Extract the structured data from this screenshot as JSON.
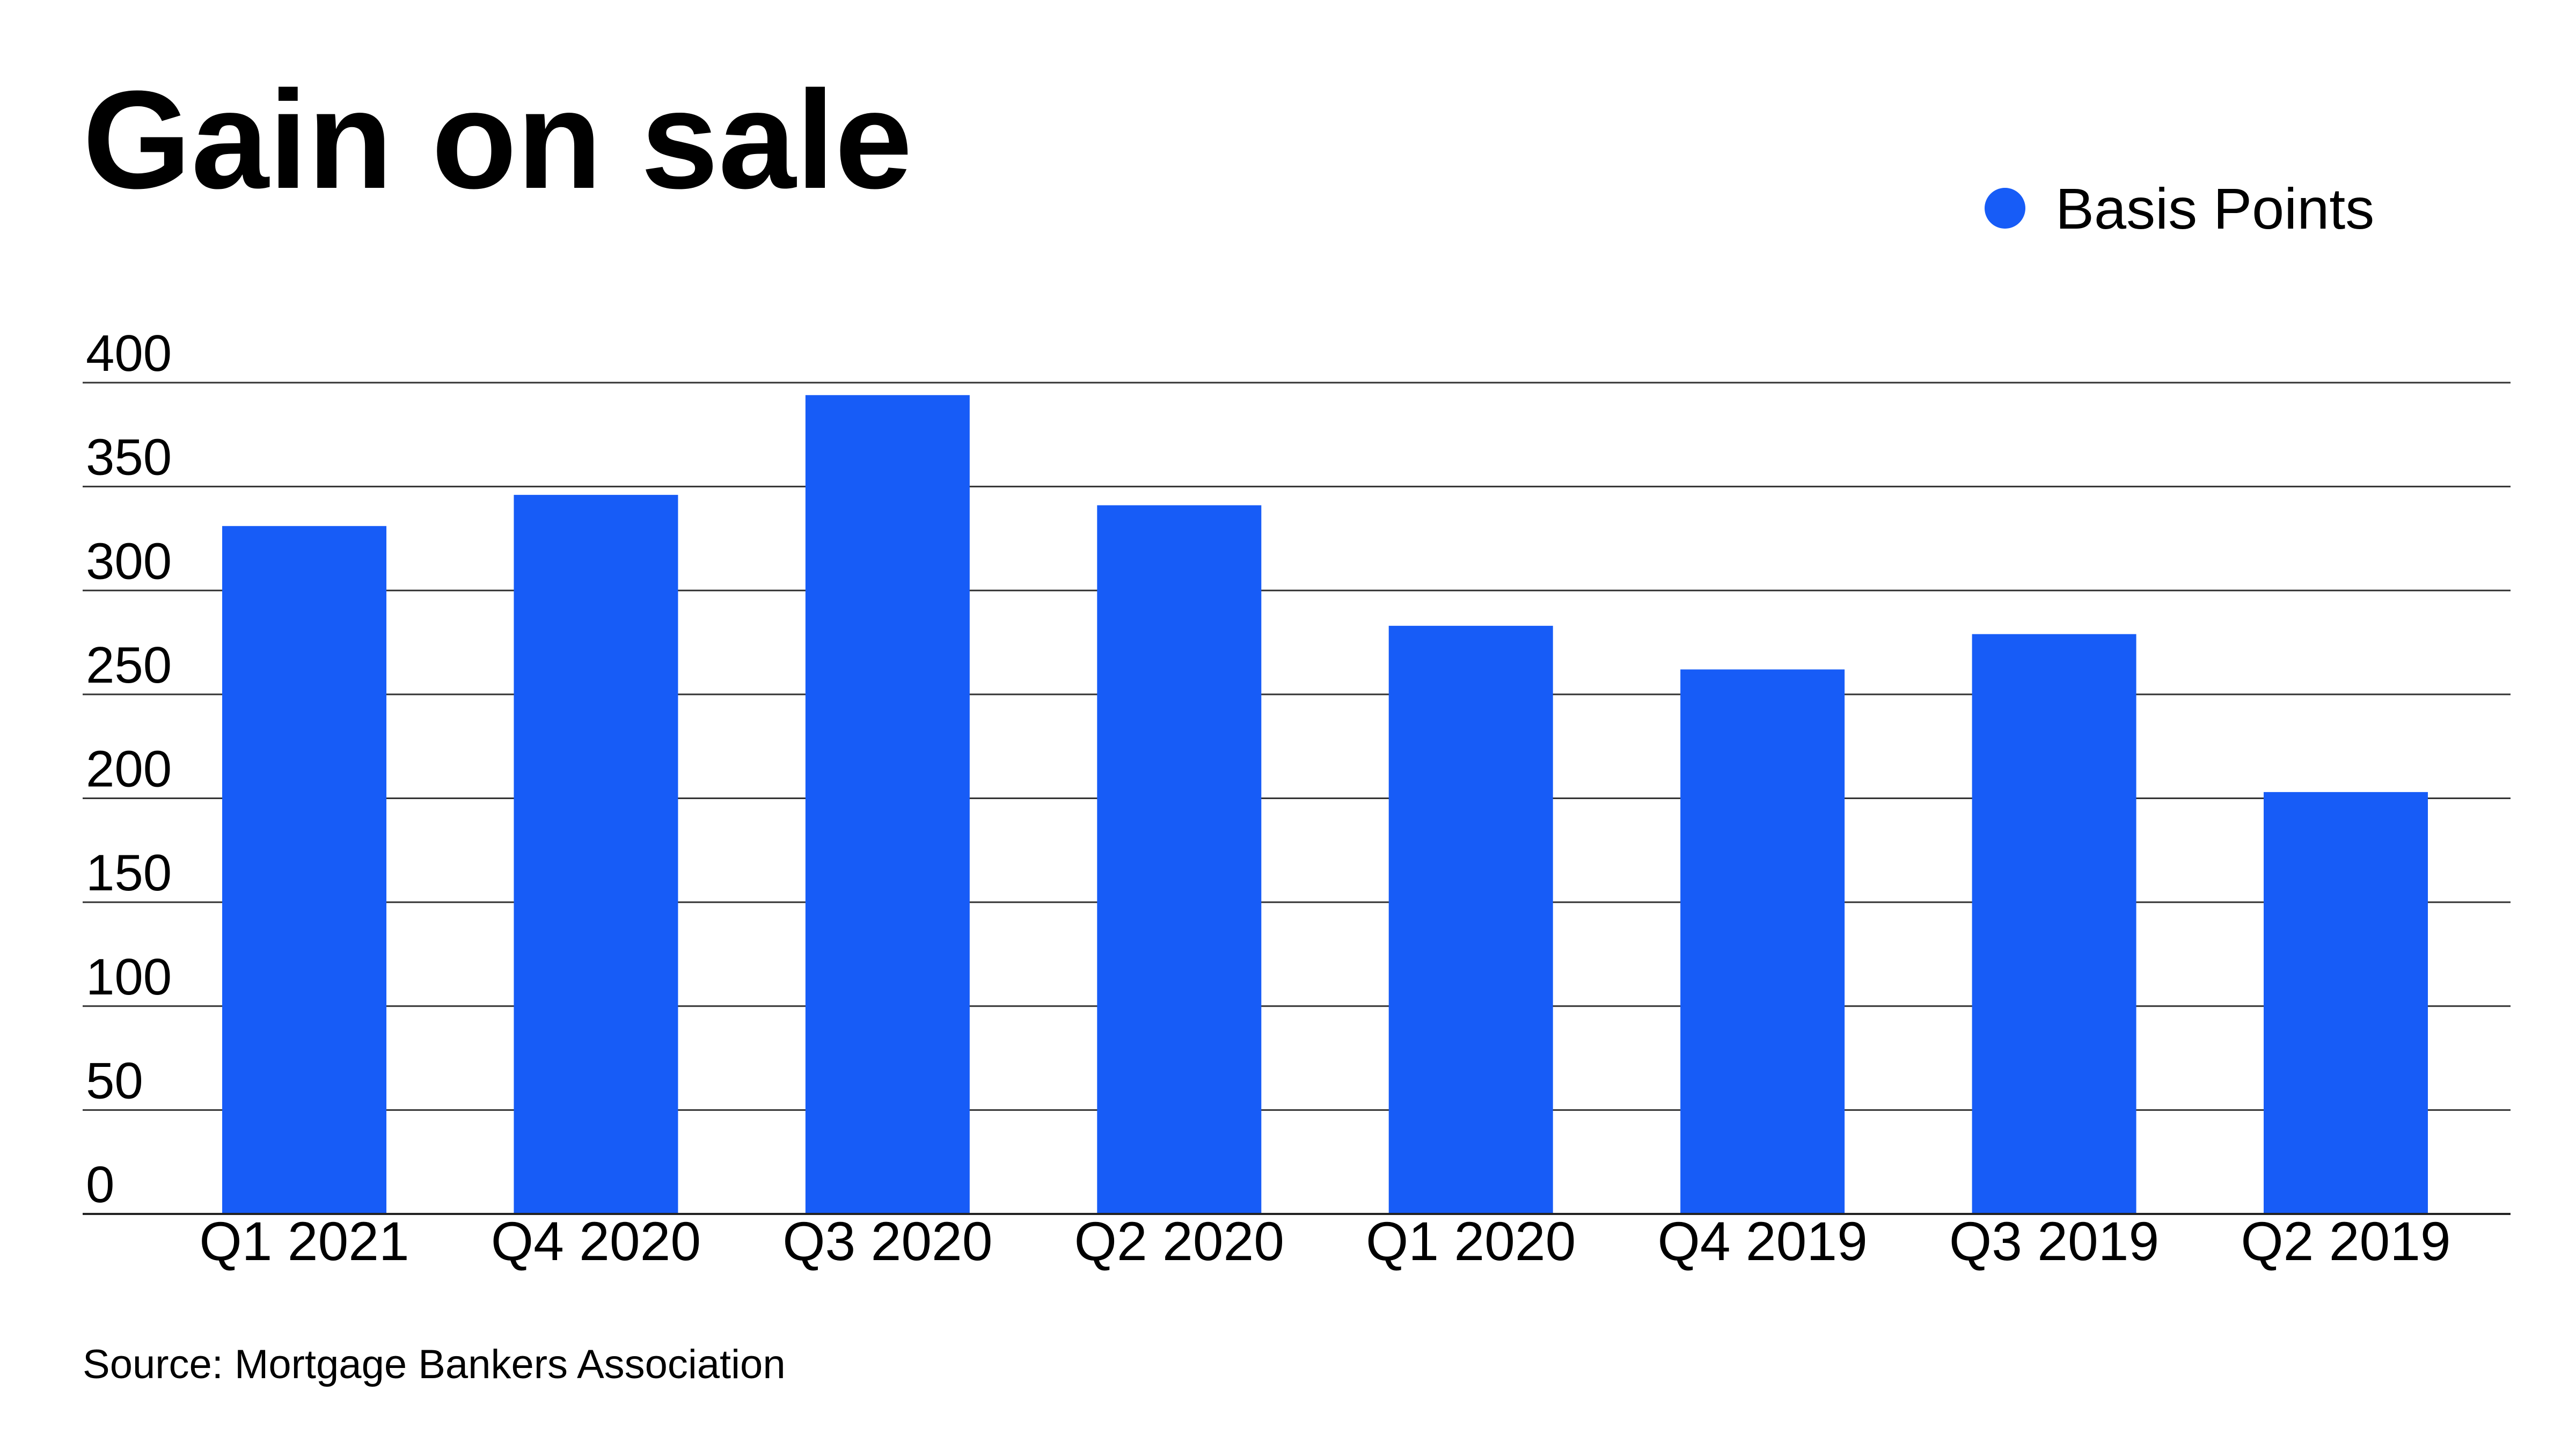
{
  "title": "Gain on sale",
  "source": "Source: Mortgage Bankers Association",
  "colors": {
    "bar": "#175cf7",
    "grid": "#333333",
    "text": "#000000"
  },
  "chart_data": {
    "type": "bar",
    "title": "Gain on sale",
    "xlabel": "",
    "ylabel": "",
    "categories": [
      "Q1 2021",
      "Q4 2020",
      "Q3 2020",
      "Q2 2020",
      "Q1 2020",
      "Q4 2019",
      "Q3 2019",
      "Q2 2019"
    ],
    "series": [
      {
        "name": "Basis Points",
        "color": "#175cf7",
        "values": [
          331,
          346,
          394,
          341,
          283,
          262,
          279,
          203
        ]
      }
    ],
    "yticks": [
      "0",
      "50",
      "100",
      "150",
      "200",
      "250",
      "300",
      "350",
      "400"
    ],
    "ylim": [
      0,
      400
    ],
    "grid": true,
    "legend": "top-right"
  }
}
